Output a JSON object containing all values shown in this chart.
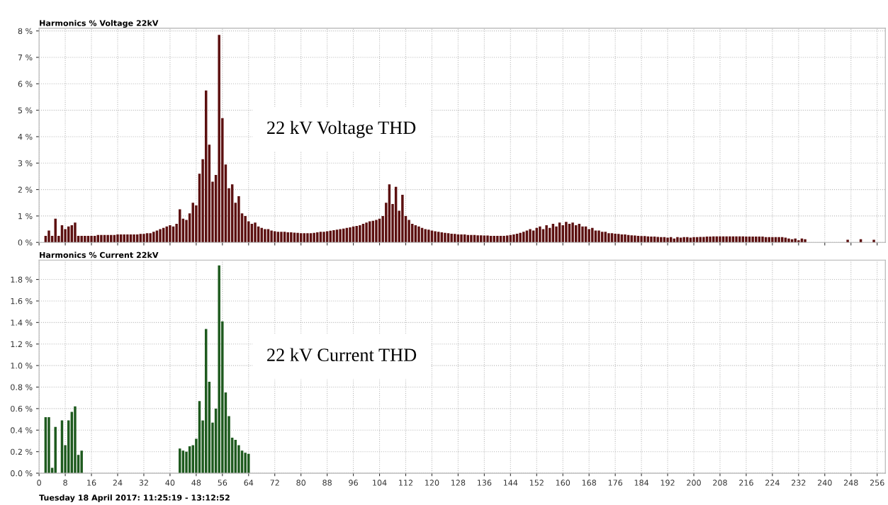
{
  "chart_data": [
    {
      "type": "bar",
      "title": "Harmonics % Voltage 22kV",
      "annotations": [
        "22 kV Voltage THD"
      ],
      "xlim": [
        0,
        258.5
      ],
      "ylim": [
        0,
        8.1
      ],
      "xticks": [
        0,
        8,
        16,
        24,
        32,
        40,
        48,
        56,
        64,
        72,
        80,
        88,
        96,
        104,
        112,
        120,
        128,
        136,
        144,
        152,
        160,
        168,
        176,
        184,
        192,
        200,
        208,
        216,
        224,
        232,
        240,
        248,
        256
      ],
      "yticks": [
        {
          "value": 0,
          "label": "0 %"
        },
        {
          "value": 1,
          "label": "1 %"
        },
        {
          "value": 2,
          "label": "2 %"
        },
        {
          "value": 3,
          "label": "3 %"
        },
        {
          "value": 4,
          "label": "4 %"
        },
        {
          "value": 5,
          "label": "5 %"
        },
        {
          "value": 6,
          "label": "6 %"
        },
        {
          "value": 7,
          "label": "7 %"
        },
        {
          "value": 8,
          "label": "8 %"
        }
      ],
      "tick_labels": "y",
      "grid": true,
      "x": [
        2,
        3,
        4,
        5,
        6,
        7,
        8,
        9,
        10,
        11,
        12,
        13,
        14,
        15,
        16,
        17,
        18,
        19,
        20,
        21,
        22,
        23,
        24,
        25,
        26,
        27,
        28,
        29,
        30,
        31,
        32,
        33,
        34,
        35,
        36,
        37,
        38,
        39,
        40,
        41,
        42,
        43,
        44,
        45,
        46,
        47,
        48,
        49,
        50,
        51,
        52,
        53,
        54,
        55,
        56,
        57,
        58,
        59,
        60,
        61,
        62,
        63,
        64,
        65,
        66,
        67,
        68,
        69,
        70,
        71,
        72,
        73,
        74,
        75,
        76,
        77,
        78,
        79,
        80,
        81,
        82,
        83,
        84,
        85,
        86,
        87,
        88,
        89,
        90,
        91,
        92,
        93,
        94,
        95,
        96,
        97,
        98,
        99,
        100,
        101,
        102,
        103,
        104,
        105,
        106,
        107,
        108,
        109,
        110,
        111,
        112,
        113,
        114,
        115,
        116,
        117,
        118,
        119,
        120,
        121,
        122,
        123,
        124,
        125,
        126,
        127,
        128,
        129,
        130,
        131,
        132,
        133,
        134,
        135,
        136,
        137,
        138,
        139,
        140,
        141,
        142,
        143,
        144,
        145,
        146,
        147,
        148,
        149,
        150,
        151,
        152,
        153,
        154,
        155,
        156,
        157,
        158,
        159,
        160,
        161,
        162,
        163,
        164,
        165,
        166,
        167,
        168,
        169,
        170,
        171,
        172,
        173,
        174,
        175,
        176,
        177,
        178,
        179,
        180,
        181,
        182,
        183,
        184,
        185,
        186,
        187,
        188,
        189,
        190,
        191,
        192,
        193,
        194,
        195,
        196,
        197,
        198,
        199,
        200,
        201,
        202,
        203,
        204,
        205,
        206,
        207,
        208,
        209,
        210,
        211,
        212,
        213,
        214,
        215,
        216,
        217,
        218,
        219,
        220,
        221,
        222,
        223,
        224,
        225,
        226,
        227,
        228,
        229,
        230,
        231,
        232,
        233,
        234,
        235,
        236,
        237,
        238,
        239,
        240,
        241,
        242,
        243,
        244,
        245,
        246,
        247,
        248,
        249,
        250,
        251,
        252,
        253,
        254,
        255,
        256
      ],
      "series": [
        {
          "color": "#5c1010",
          "values": [
            0.25,
            0.45,
            0.25,
            0.9,
            0.25,
            0.65,
            0.5,
            0.6,
            0.65,
            0.75,
            0.25,
            0.25,
            0.25,
            0.25,
            0.25,
            0.25,
            0.28,
            0.28,
            0.28,
            0.28,
            0.28,
            0.28,
            0.3,
            0.3,
            0.3,
            0.3,
            0.3,
            0.3,
            0.3,
            0.32,
            0.32,
            0.35,
            0.35,
            0.4,
            0.45,
            0.5,
            0.55,
            0.6,
            0.65,
            0.6,
            0.7,
            1.25,
            0.9,
            0.85,
            1.1,
            1.5,
            1.4,
            2.6,
            3.15,
            5.75,
            3.7,
            2.3,
            2.55,
            7.85,
            4.7,
            2.95,
            2.05,
            2.2,
            1.5,
            1.75,
            1.1,
            1.0,
            0.8,
            0.7,
            0.75,
            0.6,
            0.55,
            0.5,
            0.5,
            0.45,
            0.42,
            0.4,
            0.4,
            0.4,
            0.38,
            0.38,
            0.37,
            0.36,
            0.35,
            0.35,
            0.35,
            0.35,
            0.36,
            0.38,
            0.4,
            0.4,
            0.42,
            0.44,
            0.46,
            0.48,
            0.5,
            0.52,
            0.55,
            0.57,
            0.6,
            0.62,
            0.65,
            0.7,
            0.75,
            0.8,
            0.82,
            0.85,
            0.9,
            1.0,
            1.5,
            2.2,
            1.45,
            2.1,
            1.2,
            1.8,
            1.0,
            0.85,
            0.7,
            0.65,
            0.6,
            0.55,
            0.5,
            0.48,
            0.45,
            0.42,
            0.4,
            0.38,
            0.36,
            0.35,
            0.33,
            0.32,
            0.3,
            0.3,
            0.3,
            0.28,
            0.28,
            0.28,
            0.27,
            0.27,
            0.26,
            0.26,
            0.25,
            0.25,
            0.25,
            0.25,
            0.25,
            0.26,
            0.28,
            0.3,
            0.33,
            0.36,
            0.4,
            0.45,
            0.5,
            0.45,
            0.55,
            0.6,
            0.5,
            0.65,
            0.55,
            0.7,
            0.6,
            0.75,
            0.65,
            0.78,
            0.7,
            0.75,
            0.65,
            0.7,
            0.6,
            0.6,
            0.5,
            0.55,
            0.45,
            0.45,
            0.4,
            0.4,
            0.35,
            0.35,
            0.33,
            0.32,
            0.3,
            0.3,
            0.28,
            0.27,
            0.26,
            0.25,
            0.24,
            0.24,
            0.23,
            0.22,
            0.22,
            0.21,
            0.2,
            0.2,
            0.18,
            0.2,
            0.15,
            0.2,
            0.18,
            0.2,
            0.2,
            0.18,
            0.2,
            0.2,
            0.21,
            0.21,
            0.22,
            0.22,
            0.23,
            0.23,
            0.23,
            0.23,
            0.23,
            0.23,
            0.23,
            0.23,
            0.23,
            0.23,
            0.22,
            0.22,
            0.22,
            0.22,
            0.22,
            0.22,
            0.2,
            0.2,
            0.2,
            0.2,
            0.2,
            0.2,
            0.18,
            0.15,
            0.12,
            0.15,
            0.08,
            0.15,
            0.12,
            0,
            0,
            0,
            0,
            0,
            0,
            0,
            0,
            0,
            0,
            0,
            0,
            0.1,
            0,
            0,
            0,
            0.12,
            0,
            0,
            0,
            0.1,
            0
          ]
        }
      ]
    },
    {
      "type": "bar",
      "title": "Harmonics % Current 22kV",
      "annotations": [
        "22 kV Current THD",
        "Tuesday 18 April 2017: 11:25:19 - 13:12:52"
      ],
      "xlim": [
        0,
        258.5
      ],
      "ylim": [
        0,
        1.98
      ],
      "xticks": [
        0,
        8,
        16,
        24,
        32,
        40,
        48,
        56,
        64,
        72,
        80,
        88,
        96,
        104,
        112,
        120,
        128,
        136,
        144,
        152,
        160,
        168,
        176,
        184,
        192,
        200,
        208,
        216,
        224,
        232,
        240,
        248,
        256
      ],
      "yticks": [
        {
          "value": 0,
          "label": "0.0 %"
        },
        {
          "value": 0.2,
          "label": "0.2 %"
        },
        {
          "value": 0.4,
          "label": "0.4 %"
        },
        {
          "value": 0.6,
          "label": "0.6 %"
        },
        {
          "value": 0.8,
          "label": "0.8 %"
        },
        {
          "value": 1.0,
          "label": "1.0 %"
        },
        {
          "value": 1.2,
          "label": "1.2 %"
        },
        {
          "value": 1.4,
          "label": "1.4 %"
        },
        {
          "value": 1.6,
          "label": "1.6 %"
        },
        {
          "value": 1.8,
          "label": "1.8 %"
        }
      ],
      "grid": true,
      "x": [
        2,
        3,
        4,
        5,
        6,
        7,
        8,
        9,
        10,
        11,
        12,
        13,
        14,
        15,
        16,
        17,
        18,
        19,
        20,
        21,
        22,
        23,
        24,
        25,
        26,
        27,
        28,
        29,
        30,
        31,
        32,
        33,
        34,
        35,
        36,
        37,
        38,
        39,
        40,
        41,
        42,
        43,
        44,
        45,
        46,
        47,
        48,
        49,
        50,
        51,
        52,
        53,
        54,
        55,
        56,
        57,
        58,
        59,
        60,
        61,
        62,
        63,
        64
      ],
      "series": [
        {
          "color": "#1e5a1e",
          "values": [
            0.52,
            0.52,
            0.05,
            0.43,
            0,
            0.49,
            0.26,
            0.49,
            0.57,
            0.62,
            0.17,
            0.21,
            0,
            0,
            0,
            0,
            0,
            0,
            0,
            0,
            0,
            0,
            0,
            0,
            0,
            0,
            0,
            0,
            0,
            0,
            0,
            0,
            0,
            0,
            0,
            0,
            0,
            0,
            0,
            0,
            0,
            0.23,
            0.21,
            0.2,
            0.25,
            0.26,
            0.32,
            0.67,
            0.49,
            1.34,
            0.85,
            0.47,
            0.6,
            1.93,
            1.41,
            0.75,
            0.53,
            0.33,
            0.31,
            0.26,
            0.21,
            0.19,
            0.18
          ]
        }
      ]
    }
  ]
}
